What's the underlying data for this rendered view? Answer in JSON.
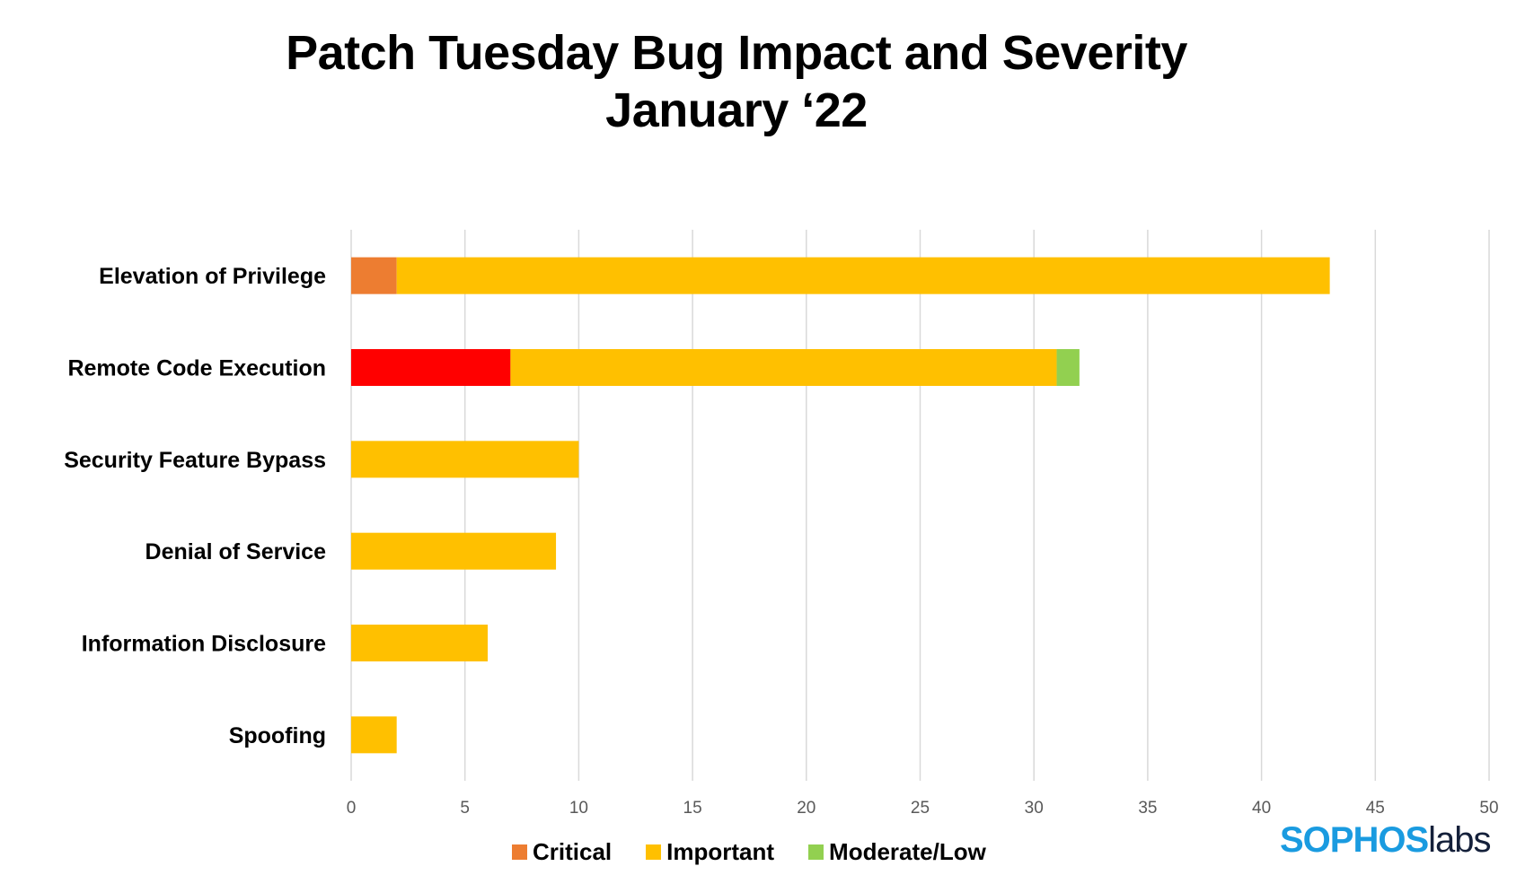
{
  "chart_data": {
    "type": "bar",
    "orientation": "horizontal",
    "stacked": true,
    "title": "Patch Tuesday Bug Impact and Severity",
    "subtitle": "January ‘22",
    "categories": [
      "Elevation of Privilege",
      "Remote Code Execution",
      "Security Feature Bypass",
      "Denial of Service",
      "Information Disclosure",
      "Spoofing"
    ],
    "series": [
      {
        "name": "Critical",
        "color": "#ED7D31",
        "point_colors": [
          "#ED7D31",
          "#FF0000",
          "#ED7D31",
          "#ED7D31",
          "#ED7D31",
          "#ED7D31"
        ],
        "values": [
          2,
          7,
          0,
          0,
          0,
          0
        ]
      },
      {
        "name": "Important",
        "color": "#FFC000",
        "values": [
          41,
          24,
          10,
          9,
          6,
          2
        ]
      },
      {
        "name": "Moderate/Low",
        "color": "#92D050",
        "values": [
          0,
          1,
          0,
          0,
          0,
          0
        ]
      }
    ],
    "xlim": [
      0,
      50
    ],
    "xticks": [
      "0",
      "5",
      "10",
      "15",
      "20",
      "25",
      "30",
      "35",
      "40",
      "45",
      "50"
    ],
    "grid": true,
    "legend_position": "bottom"
  },
  "logo": {
    "part1": "SOPHOS",
    "part2": "labs"
  }
}
